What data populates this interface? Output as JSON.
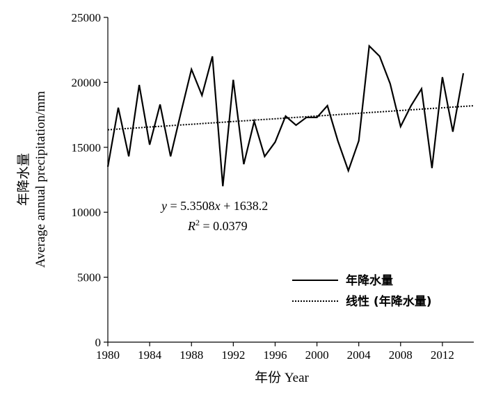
{
  "chart_data": {
    "type": "line",
    "title": "",
    "xlabel": "年份 Year",
    "ylabel_cn": "年降水量",
    "ylabel_en": "Average annual precipitation/mm",
    "xlim": [
      1980,
      2015
    ],
    "ylim": [
      0,
      25000
    ],
    "x_ticks": [
      1980,
      1984,
      1988,
      1992,
      1996,
      2000,
      2004,
      2008,
      2012
    ],
    "y_ticks": [
      0,
      5000,
      10000,
      15000,
      20000,
      25000
    ],
    "series": [
      {
        "name": "年降水量",
        "style": "solid",
        "color": "#000000",
        "x": [
          1980,
          1981,
          1982,
          1983,
          1984,
          1985,
          1986,
          1987,
          1988,
          1989,
          1990,
          1991,
          1992,
          1993,
          1994,
          1995,
          1996,
          1997,
          1998,
          1999,
          2000,
          2001,
          2002,
          2003,
          2004,
          2005,
          2006,
          2007,
          2008,
          2009,
          2010,
          2011,
          2012,
          2013,
          2014,
          2015
        ],
        "y": [
          13500,
          18050,
          14300,
          19800,
          15200,
          18300,
          14300,
          17700,
          21000,
          19000,
          22000,
          12000,
          20200,
          13700,
          17000,
          14300,
          15400,
          17400,
          16700,
          17300,
          17300,
          18200,
          15500,
          13200,
          15500,
          22800,
          22000,
          19900,
          16600,
          18200,
          19500,
          13400,
          20400,
          16200,
          20700,
          null
        ]
      },
      {
        "name": "线性 (年降水量)",
        "style": "dotted",
        "color": "#000000",
        "x": [
          1980,
          2015
        ],
        "y": [
          16350,
          18200
        ]
      }
    ],
    "annotations": {
      "equation": {
        "y": "y",
        "rest": " = 5.3508",
        "x": "x",
        "tail": " + 1638.2"
      },
      "r2": {
        "r": "R",
        "sup": "2",
        "rest": " = 0.0379"
      }
    },
    "legend": {
      "position": "bottom-right",
      "entries": [
        "年降水量",
        "线性 (年降水量)"
      ]
    },
    "grid": false
  }
}
